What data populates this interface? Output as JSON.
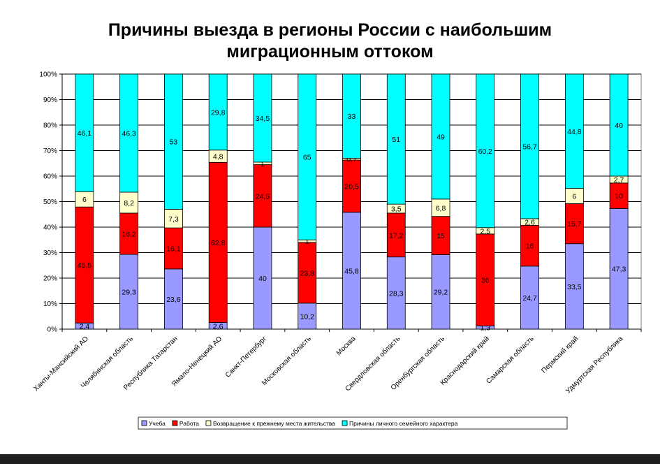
{
  "chart_data": {
    "type": "bar",
    "stacked": true,
    "title": [
      "Причины выезда в регионы России с наибольшим",
      "миграционным оттоком"
    ],
    "ylim": [
      0,
      100
    ],
    "yticks": [
      "0%",
      "10%",
      "20%",
      "30%",
      "40%",
      "50%",
      "60%",
      "70%",
      "80%",
      "90%",
      "100%"
    ],
    "grid": "horizontal",
    "legend_position": "bottom",
    "categories": [
      "Ханты-Мансийский АО",
      "Челябинская область",
      "Республика Татарстан",
      "Ямало-Ненецкий АО",
      "Санкт-Петербург",
      "Московская область",
      "Москва",
      "Свердловская область",
      "Оренбургская область",
      "Краснодарский край",
      "Самарская область",
      "Пермский край",
      "Удмуртская Республика"
    ],
    "series": [
      {
        "name": "Учеба",
        "color": "#9999ff",
        "values": [
          2.4,
          29.3,
          23.6,
          2.6,
          40,
          10.2,
          45.8,
          28.3,
          29.2,
          1.3,
          24.7,
          33.5,
          47.3
        ],
        "labels": [
          "2,4",
          "29,3",
          "23,6",
          "2,6",
          "40",
          "10,2",
          "45,8",
          "28,3",
          "29,2",
          "1,3",
          "24,7",
          "33,5",
          "47,3"
        ]
      },
      {
        "name": "Работа",
        "color": "#ff0000",
        "values": [
          45.5,
          16.2,
          16.1,
          62.8,
          24.5,
          23.8,
          20.5,
          17.2,
          15,
          36,
          16,
          15.7,
          10
        ],
        "labels": [
          "45,5",
          "16,2",
          "16,1",
          "62,8",
          "24,5",
          "23,8",
          "20,5",
          "17,2",
          "15",
          "36",
          "16",
          "15,7",
          "10"
        ]
      },
      {
        "name": "Возвращение к прежнему места жительства",
        "color": "#ffffcc",
        "values": [
          6,
          8.2,
          7.3,
          4.8,
          1,
          1,
          0.7,
          3.5,
          6.8,
          2.5,
          2.6,
          6,
          2.7
        ],
        "labels": [
          "6",
          "8,2",
          "7,3",
          "4,8",
          "1",
          "1",
          "0,7",
          "3,5",
          "6,8",
          "2,5",
          "2,6",
          "6",
          "2,7"
        ]
      },
      {
        "name": "Причины личного семейного характера",
        "color": "#00ffff",
        "values": [
          46.1,
          46.3,
          53,
          29.8,
          34.5,
          65,
          33,
          51,
          49,
          60.2,
          56.7,
          44.8,
          40
        ],
        "labels": [
          "46,1",
          "46,3",
          "53",
          "29,8",
          "34,5",
          "65",
          "33",
          "51",
          "49",
          "60,2",
          "56,7",
          "44,8",
          "40"
        ]
      }
    ]
  }
}
